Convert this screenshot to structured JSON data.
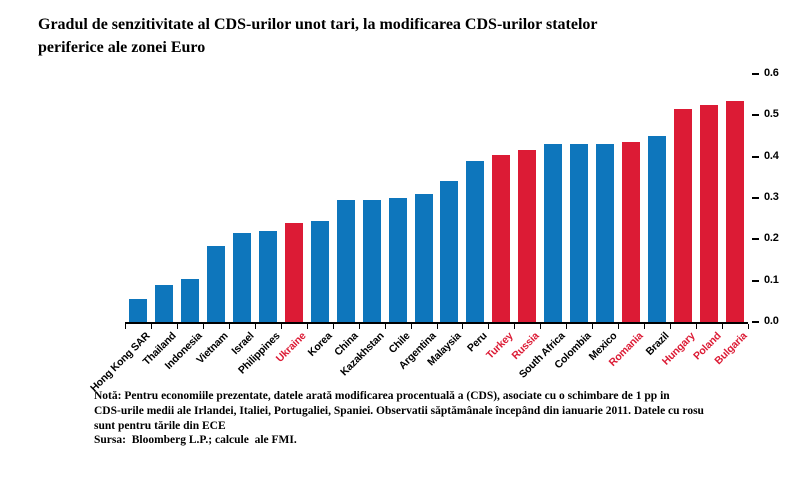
{
  "title": "Gradul de senzitivitate al CDS-urilor unot tari, la modificarea CDS-urilor statelor\nperiferice ale zonei Euro",
  "note": "Notă: Pentru economiile prezentate, datele arată modificarea procentuală a (CDS), asociate cu o schimbare de 1 pp in\nCDS-urile medii ale Irlandei, Italiei, Portugaliei, Spaniei. Observatii săptămânale începând din ianuarie 2011. Datele cu rosu\nsunt pentru tările din ECE",
  "source": "Sursa:  Bloomberg L.P.; calcule  ale FMI.",
  "colors": {
    "bar_blue": "#0e76bc",
    "bar_red": "#dc1b35",
    "label_red": "#dc1b35",
    "axis": "#000000"
  },
  "chart_data": {
    "type": "bar",
    "title": "Gradul de senzitivitate al CDS-urilor unot tari, la modificarea CDS-urilor statelor periferice ale zonei Euro",
    "xlabel": "",
    "ylabel": "",
    "yaxis_position": "right",
    "grid": false,
    "legend": "none",
    "ylim": [
      0,
      0.6
    ],
    "ytick_values": [
      0,
      0.1,
      0.2,
      0.3,
      0.4,
      0.5,
      0.6
    ],
    "ytick_labels": [
      "0.0",
      "0.1",
      "0.2",
      "0.3",
      "0.4",
      "0.5",
      "0.6"
    ],
    "categories": [
      "Hong Kong SAR",
      "Thailand",
      "Indonesia",
      "Vietnam",
      "Israel",
      "Philippines",
      "Ukraine",
      "Korea",
      "China",
      "Kazakhstan",
      "Chile",
      "Argentina",
      "Malaysia",
      "Peru",
      "Turkey",
      "Russia",
      "South Africa",
      "Colombia",
      "Mexico",
      "Romania",
      "Brazil",
      "Hungary",
      "Poland",
      "Bulgaria"
    ],
    "values": [
      0.055,
      0.09,
      0.105,
      0.185,
      0.215,
      0.22,
      0.24,
      0.245,
      0.295,
      0.295,
      0.3,
      0.31,
      0.34,
      0.39,
      0.405,
      0.415,
      0.43,
      0.43,
      0.43,
      0.435,
      0.45,
      0.515,
      0.525,
      0.535
    ],
    "ece_flags": [
      false,
      false,
      false,
      false,
      false,
      false,
      true,
      false,
      false,
      false,
      false,
      false,
      false,
      false,
      true,
      true,
      false,
      false,
      false,
      true,
      false,
      true,
      true,
      true
    ],
    "ece_highlighted": [
      "Ukraine",
      "Turkey",
      "Russia",
      "Romania",
      "Hungary",
      "Poland",
      "Bulgaria"
    ]
  }
}
